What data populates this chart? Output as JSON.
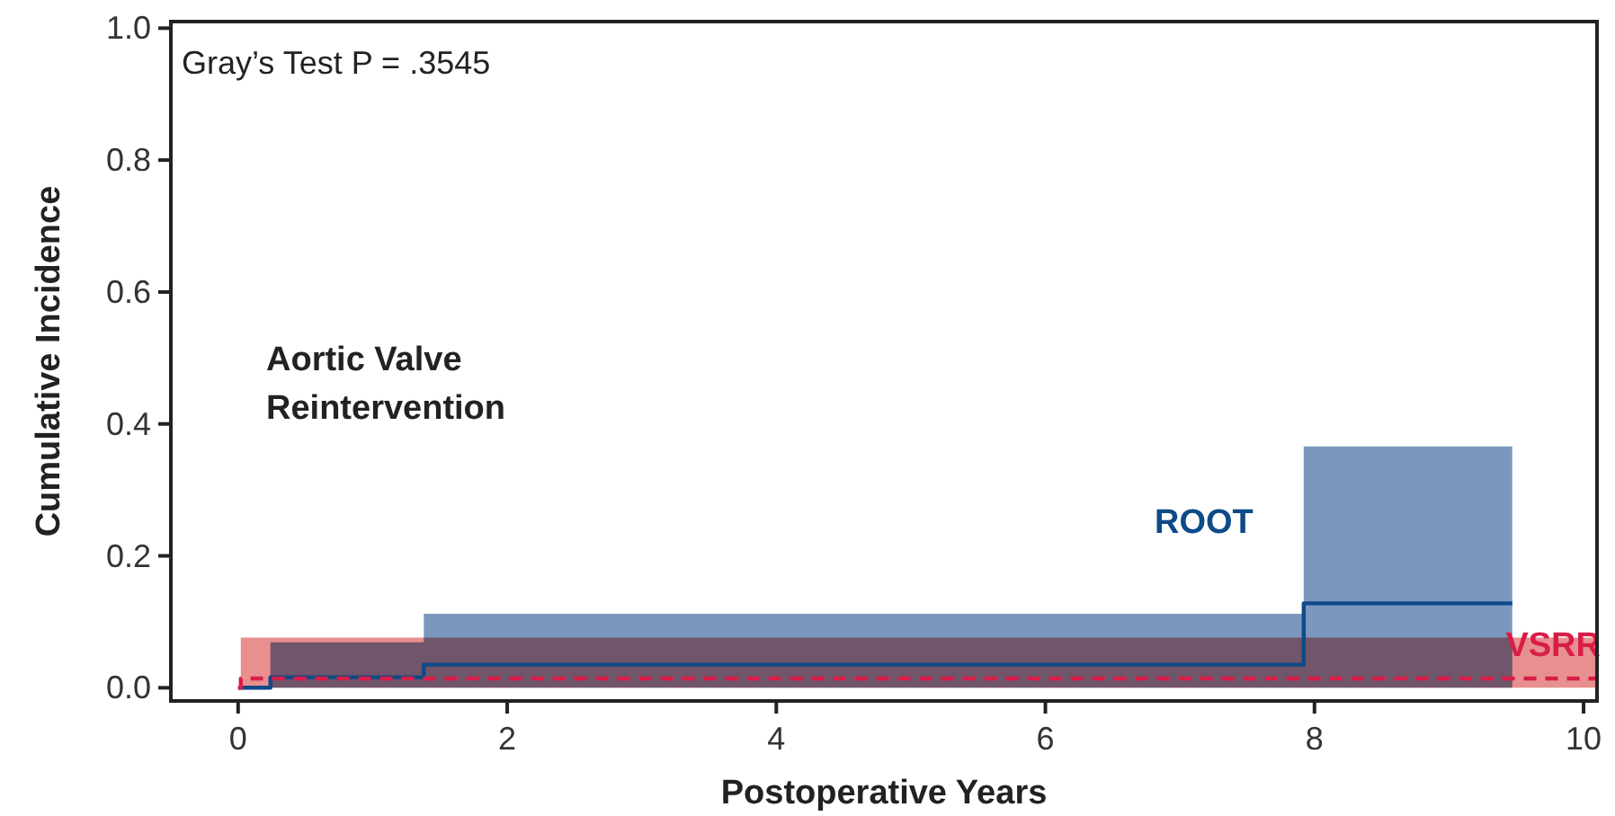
{
  "chart_data": {
    "type": "step",
    "xlabel": "Postoperative Years",
    "ylabel": "Cumulative Incidence",
    "annotations": [
      "Gray’s Test P = .3545",
      "Aortic Valve Reintervention"
    ],
    "xlim": [
      -0.5,
      10.1
    ],
    "xticks": [
      0,
      2,
      4,
      6,
      8,
      10
    ],
    "ylim": [
      -0.02,
      1.01
    ],
    "yticks": [
      {
        "value": 0,
        "label": "0.0"
      },
      0.2,
      0.4,
      0.6,
      0.8,
      {
        "value": 1,
        "label": "1.0"
      }
    ],
    "grid": false,
    "legend": false,
    "series": [
      {
        "name": "ROOT",
        "color": "#0d4a87",
        "line_style": "solid",
        "x": [
          0,
          0.24,
          1.38,
          7.92,
          9.47
        ],
        "values": [
          0,
          0.016,
          0.035,
          0.128,
          0.128
        ],
        "lower": [
          0,
          0,
          0,
          0,
          0
        ],
        "upper": [
          0,
          0.069,
          0.112,
          0.366,
          0.366
        ]
      },
      {
        "name": "VSRR",
        "color": "#d81e48",
        "line_style": "dashed",
        "x": [
          0,
          0.02,
          10.1
        ],
        "values": [
          0,
          0.014,
          0.014
        ],
        "lower": [
          0,
          0,
          0
        ],
        "upper": [
          0,
          0.076,
          0.076
        ]
      }
    ]
  }
}
